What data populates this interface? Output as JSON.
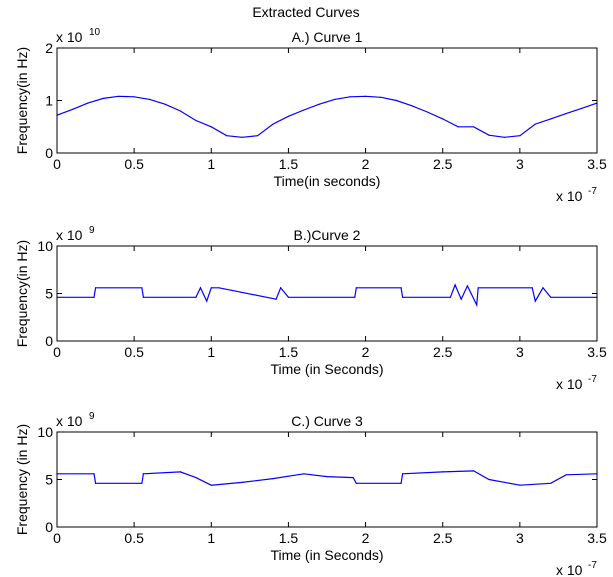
{
  "figure_title": "Extracted Curves",
  "chart_data": [
    {
      "type": "line",
      "title": "A.) Curve 1",
      "xlabel": "Time(in seconds)",
      "ylabel": "Frequency(in Hz)",
      "x_exponent_base": "x 10",
      "x_exponent": "-7",
      "y_exponent_base": "x 10",
      "y_exponent": "10",
      "xlim": [
        0,
        3.5
      ],
      "ylim": [
        0,
        2
      ],
      "x_ticks": [
        "0",
        "0.5",
        "1",
        "1.5",
        "2",
        "2.5",
        "3",
        "3.5"
      ],
      "y_ticks": [
        "0",
        "1",
        "2"
      ],
      "series": [
        {
          "x": [
            0,
            0.1,
            0.2,
            0.3,
            0.4,
            0.5,
            0.6,
            0.7,
            0.8,
            0.9,
            1.0,
            1.1,
            1.2,
            1.3,
            1.4,
            1.5,
            1.6,
            1.7,
            1.8,
            1.9,
            2.0,
            2.1,
            2.2,
            2.3,
            2.4,
            2.5,
            2.6,
            2.7,
            2.8,
            2.9,
            3.0,
            3.1,
            3.2,
            3.3,
            3.4,
            3.5
          ],
          "y": [
            0.72,
            0.83,
            0.95,
            1.04,
            1.08,
            1.07,
            1.02,
            0.93,
            0.8,
            0.62,
            0.5,
            0.33,
            0.3,
            0.33,
            0.55,
            0.7,
            0.82,
            0.93,
            1.02,
            1.07,
            1.08,
            1.06,
            1.0,
            0.9,
            0.78,
            0.65,
            0.5,
            0.5,
            0.34,
            0.3,
            0.33,
            0.55,
            0.65,
            0.75,
            0.85,
            0.95
          ]
        }
      ],
      "color": "#0000ff"
    },
    {
      "type": "line",
      "title": "B.)Curve 2",
      "xlabel": "Time (in Seconds)",
      "ylabel": "Frequency(in Hz)",
      "x_exponent_base": "x 10",
      "x_exponent": "-7",
      "y_exponent_base": "x 10",
      "y_exponent": "9",
      "xlim": [
        0,
        3.5
      ],
      "ylim": [
        0,
        10
      ],
      "x_ticks": [
        "0",
        "0.5",
        "1",
        "1.5",
        "2",
        "2.5",
        "3",
        "3.5"
      ],
      "y_ticks": [
        "0",
        "5",
        "10"
      ],
      "series": [
        {
          "x": [
            0,
            0.24,
            0.25,
            0.55,
            0.56,
            0.9,
            0.93,
            0.97,
            1.0,
            1.05,
            1.42,
            1.45,
            1.5,
            1.93,
            1.94,
            2.23,
            2.24,
            2.55,
            2.58,
            2.62,
            2.66,
            2.72,
            2.73,
            3.08,
            3.1,
            3.15,
            3.2,
            3.5
          ],
          "y": [
            4.6,
            4.6,
            5.6,
            5.6,
            4.6,
            4.6,
            5.6,
            4.2,
            5.6,
            5.6,
            4.4,
            5.6,
            4.6,
            4.6,
            5.6,
            5.6,
            4.6,
            4.6,
            5.9,
            4.4,
            5.8,
            3.8,
            5.6,
            5.6,
            4.2,
            5.6,
            4.6,
            4.6
          ]
        }
      ],
      "color": "#0000ff"
    },
    {
      "type": "line",
      "title": "C.) Curve 3",
      "xlabel": "Time (in Seconds)",
      "ylabel": "Frequency (in Hz)",
      "x_exponent_base": "x 10",
      "x_exponent": "-7",
      "y_exponent_base": "x 10",
      "y_exponent": "9",
      "xlim": [
        0,
        3.5
      ],
      "ylim": [
        0,
        10
      ],
      "x_ticks": [
        "0",
        "0.5",
        "1",
        "1.5",
        "2",
        "2.5",
        "3",
        "3.5"
      ],
      "y_ticks": [
        "0",
        "5",
        "10"
      ],
      "series": [
        {
          "x": [
            0,
            0.24,
            0.25,
            0.55,
            0.56,
            0.8,
            0.9,
            1.0,
            1.2,
            1.4,
            1.6,
            1.75,
            1.92,
            1.94,
            2.23,
            2.24,
            2.5,
            2.7,
            2.8,
            3.0,
            3.2,
            3.3,
            3.5
          ],
          "y": [
            5.6,
            5.6,
            4.6,
            4.6,
            5.6,
            5.8,
            5.2,
            4.4,
            4.7,
            5.1,
            5.6,
            5.3,
            5.2,
            4.6,
            4.6,
            5.6,
            5.8,
            5.9,
            5.0,
            4.4,
            4.6,
            5.5,
            5.6
          ]
        }
      ],
      "color": "#0000ff"
    }
  ]
}
